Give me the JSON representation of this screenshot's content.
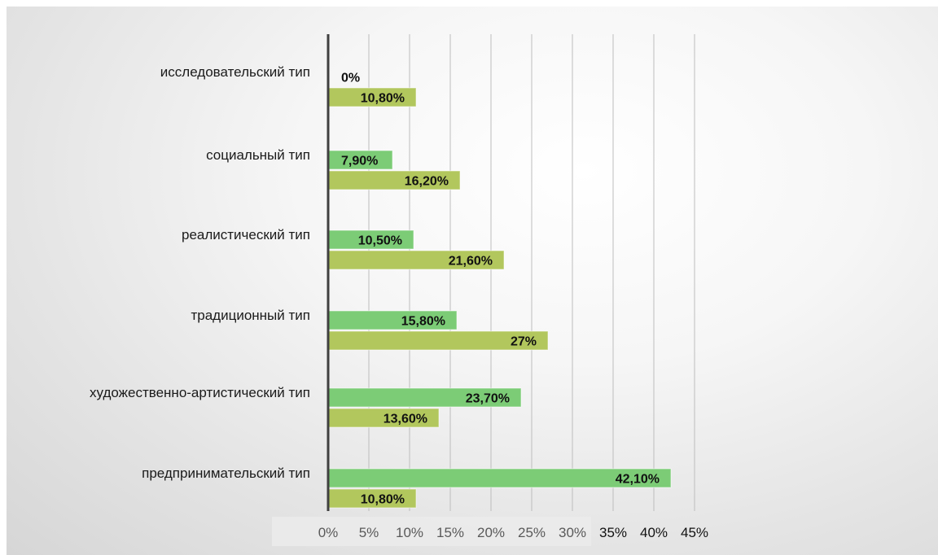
{
  "chart_data": {
    "type": "bar",
    "orientation": "horizontal",
    "categories": [
      "исследовательский тип",
      "социальный тип",
      "реалистический тип",
      "традиционный тип",
      "художественно-артистический тип",
      "предпринимательский тип"
    ],
    "series": [
      {
        "values": [
          0,
          7.9,
          10.5,
          15.8,
          23.7,
          42.1
        ],
        "labels": [
          "0%",
          "7,90%",
          "10,50%",
          "15,80%",
          "23,70%",
          "42,10%"
        ],
        "color": "#7ccc76"
      },
      {
        "values": [
          10.8,
          16.2,
          21.6,
          27,
          13.6,
          10.8
        ],
        "labels": [
          "10,80%",
          "16,20%",
          "21,60%",
          "27%",
          "13,60%",
          "10,80%"
        ],
        "color": "#b2c75d"
      }
    ],
    "xlim": [
      0,
      45
    ],
    "xticks": [
      "0%",
      "5%",
      "10%",
      "15%",
      "20%",
      "25%",
      "30%",
      "35%",
      "40%",
      "45%"
    ],
    "grid": true,
    "legend": "none"
  }
}
